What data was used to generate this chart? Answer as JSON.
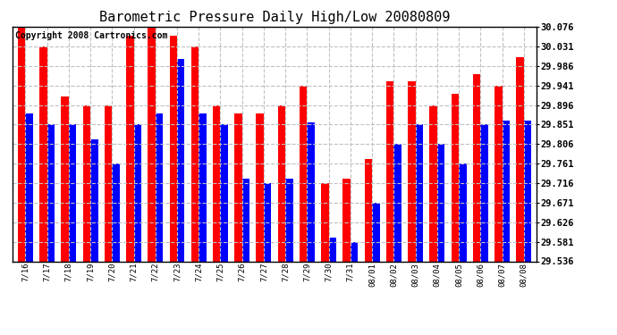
{
  "title": "Barometric Pressure Daily High/Low 20080809",
  "copyright": "Copyright 2008 Cartronics.com",
  "dates": [
    "7/16",
    "7/17",
    "7/18",
    "7/19",
    "7/20",
    "7/21",
    "7/22",
    "7/23",
    "7/24",
    "7/25",
    "7/26",
    "7/27",
    "7/28",
    "7/29",
    "7/30",
    "7/31",
    "08/01",
    "08/02",
    "08/03",
    "08/04",
    "08/05",
    "08/06",
    "08/07",
    "08/08"
  ],
  "highs": [
    30.076,
    30.031,
    29.916,
    29.896,
    29.896,
    30.055,
    30.076,
    30.055,
    30.031,
    29.896,
    29.876,
    29.876,
    29.896,
    29.941,
    29.716,
    29.726,
    29.771,
    29.951,
    29.951,
    29.896,
    29.921,
    29.966,
    29.941,
    30.006
  ],
  "lows": [
    29.876,
    29.851,
    29.851,
    29.816,
    29.761,
    29.851,
    29.876,
    30.001,
    29.876,
    29.851,
    29.726,
    29.716,
    29.726,
    29.856,
    29.591,
    29.581,
    29.671,
    29.806,
    29.851,
    29.806,
    29.761,
    29.851,
    29.861,
    29.861
  ],
  "ymin": 29.536,
  "ymax": 30.076,
  "yticks": [
    29.536,
    29.581,
    29.626,
    29.671,
    29.716,
    29.761,
    29.806,
    29.851,
    29.896,
    29.941,
    29.986,
    30.031,
    30.076
  ],
  "bar_high_color": "#ff0000",
  "bar_low_color": "#0000ff",
  "bg_color": "#ffffff",
  "grid_color": "#c0c0c0",
  "title_fontsize": 11,
  "copyright_fontsize": 7
}
